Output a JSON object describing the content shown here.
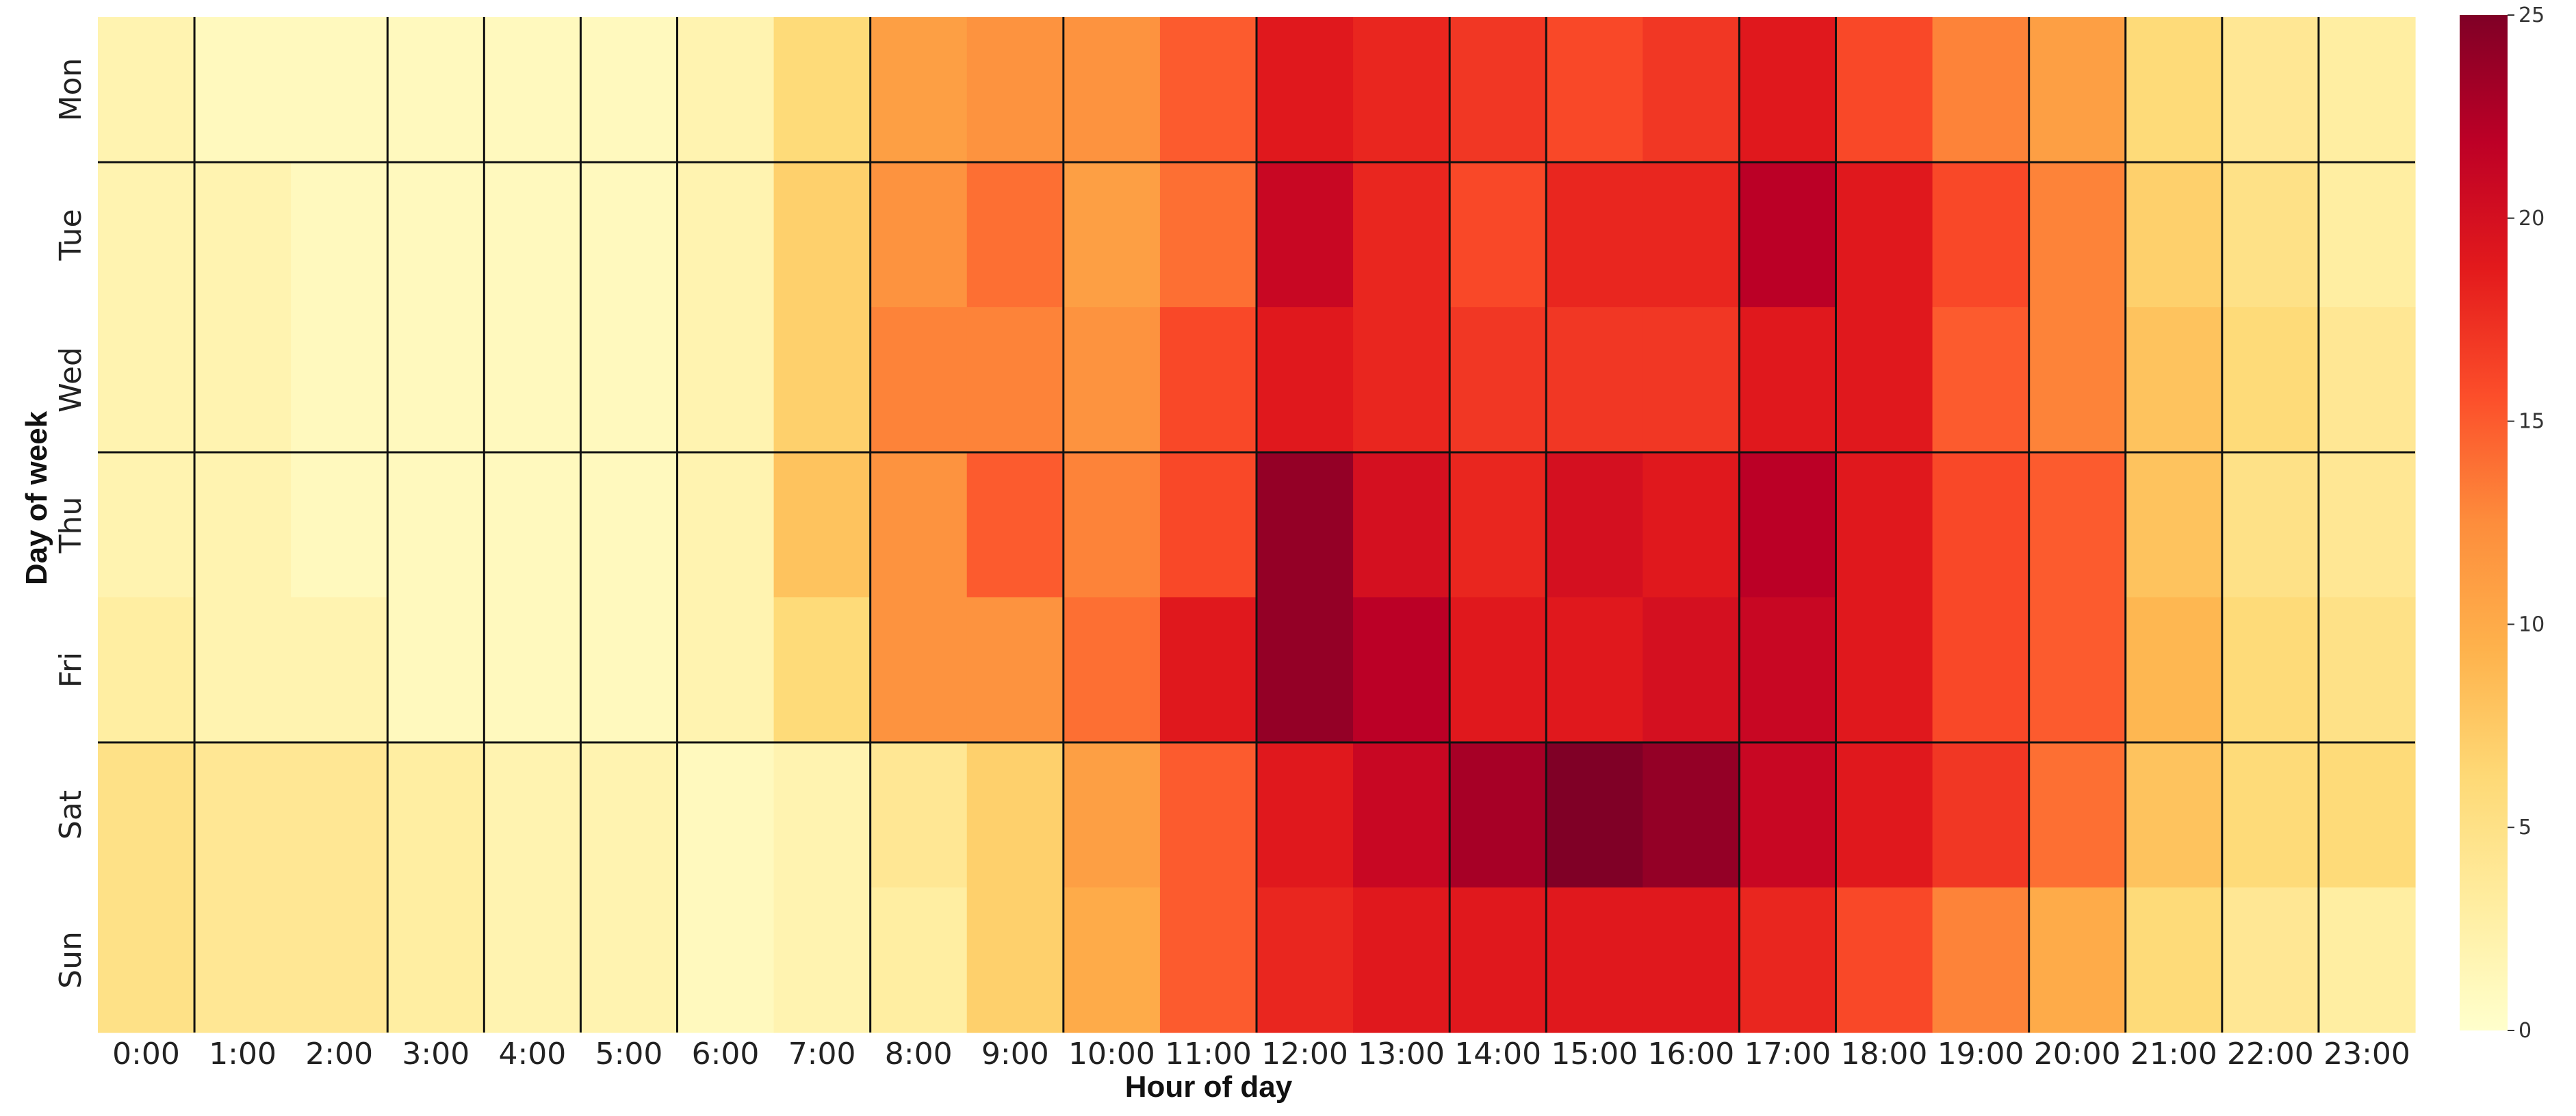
{
  "chart_data": {
    "type": "heatmap",
    "title": "",
    "xlabel": "Hour of day",
    "ylabel": "Day of week",
    "x": [
      "0:00",
      "1:00",
      "2:00",
      "3:00",
      "4:00",
      "5:00",
      "6:00",
      "7:00",
      "8:00",
      "9:00",
      "10:00",
      "11:00",
      "12:00",
      "13:00",
      "14:00",
      "15:00",
      "16:00",
      "17:00",
      "18:00",
      "19:00",
      "20:00",
      "21:00",
      "22:00",
      "23:00"
    ],
    "y": [
      "Mon",
      "Tue",
      "Wed",
      "Thu",
      "Fri",
      "Sat",
      "Sun"
    ],
    "values": [
      [
        2,
        1,
        1,
        1,
        1,
        1,
        2,
        6,
        11,
        12,
        12,
        15,
        19,
        18,
        17,
        16,
        17,
        19,
        16,
        13,
        11,
        6,
        4,
        3
      ],
      [
        2,
        2,
        1,
        1,
        1,
        1,
        2,
        7,
        12,
        14,
        11,
        14,
        21,
        18,
        16,
        18,
        18,
        22,
        19,
        16,
        13,
        7,
        5,
        3
      ],
      [
        2,
        2,
        1,
        1,
        1,
        1,
        2,
        7,
        13,
        13,
        12,
        16,
        19,
        18,
        17,
        17,
        17,
        19,
        19,
        15,
        13,
        8,
        6,
        4
      ],
      [
        2,
        2,
        1,
        1,
        1,
        1,
        2,
        8,
        12,
        15,
        13,
        16,
        24,
        20,
        18,
        20,
        19,
        22,
        19,
        16,
        15,
        8,
        5,
        4
      ],
      [
        3,
        2,
        2,
        1,
        1,
        1,
        2,
        6,
        12,
        12,
        14,
        19,
        24,
        22,
        19,
        19,
        20,
        21,
        19,
        16,
        15,
        9,
        6,
        5
      ],
      [
        5,
        4,
        4,
        3,
        2,
        2,
        1,
        2,
        4,
        7,
        11,
        15,
        19,
        21,
        23,
        25,
        24,
        21,
        19,
        17,
        14,
        8,
        6,
        6
      ],
      [
        5,
        4,
        4,
        3,
        2,
        2,
        1,
        2,
        3,
        7,
        10,
        15,
        18,
        19,
        19,
        19,
        19,
        18,
        16,
        13,
        10,
        6,
        4,
        3
      ]
    ],
    "colorbar": {
      "min": 0,
      "max": 25,
      "ticks": [
        "0",
        "5",
        "10",
        "15",
        "20",
        "25"
      ],
      "colors": [
        "#ffffcc",
        "#ffeda0",
        "#fed976",
        "#feb24c",
        "#fd8d3c",
        "#fc4e2a",
        "#e31a1c",
        "#bd0026",
        "#800026"
      ]
    },
    "grid": {
      "vertical_after_x": [
        "0:00",
        "2:00",
        "3:00",
        "4:00",
        "5:00",
        "7:00",
        "9:00",
        "11:00",
        "13:00",
        "14:00",
        "16:00",
        "17:00",
        "19:00",
        "20:00",
        "21:00",
        "22:00"
      ],
      "horizontal_after_y": [
        "Mon",
        "Wed",
        "Fri"
      ]
    },
    "legend": "none"
  }
}
